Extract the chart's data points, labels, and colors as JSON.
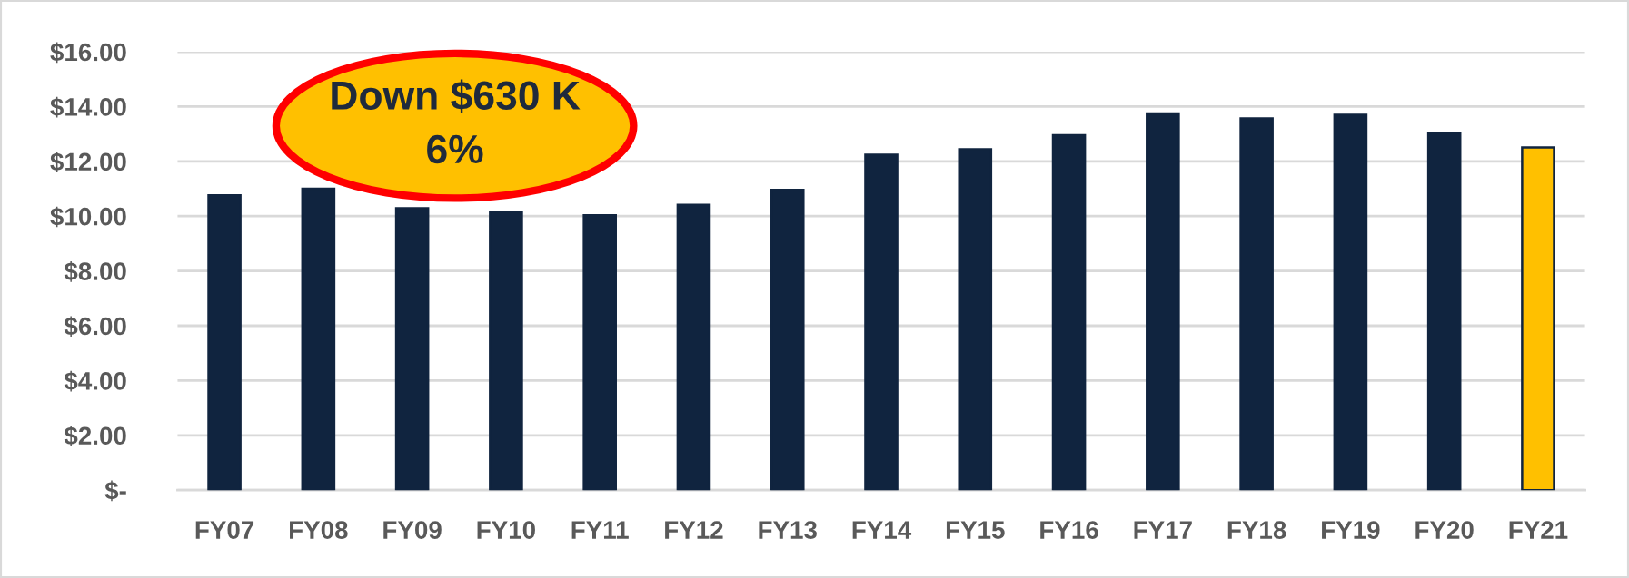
{
  "chart_data": {
    "type": "bar",
    "categories": [
      "FY07",
      "FY08",
      "FY09",
      "FY10",
      "FY11",
      "FY12",
      "FY13",
      "FY14",
      "FY15",
      "FY16",
      "FY17",
      "FY18",
      "FY19",
      "FY20",
      "FY21"
    ],
    "values": [
      10.76,
      11.0,
      10.29,
      10.16,
      10.03,
      10.41,
      10.96,
      12.24,
      12.44,
      12.95,
      13.75,
      13.57,
      13.7,
      13.04,
      12.51
    ],
    "colors": [
      "#10243f",
      "#10243f",
      "#10243f",
      "#10243f",
      "#10243f",
      "#10243f",
      "#10243f",
      "#10243f",
      "#10243f",
      "#10243f",
      "#10243f",
      "#10243f",
      "#10243f",
      "#10243f",
      "#ffc000"
    ],
    "ylim": [
      0,
      16
    ],
    "yticks": [
      {
        "value": 0,
        "label": "$-"
      },
      {
        "value": 2,
        "label": "$2.00"
      },
      {
        "value": 4,
        "label": "$4.00"
      },
      {
        "value": 6,
        "label": "$6.00"
      },
      {
        "value": 8,
        "label": "$8.00"
      },
      {
        "value": 10,
        "label": "$10.00"
      },
      {
        "value": 12,
        "label": "$12.00"
      },
      {
        "value": 14,
        "label": "$14.00"
      },
      {
        "value": 16,
        "label": "$16.00"
      }
    ],
    "grid": "y",
    "legend": false,
    "annotations": [
      "Down $630 K\n6%"
    ]
  }
}
